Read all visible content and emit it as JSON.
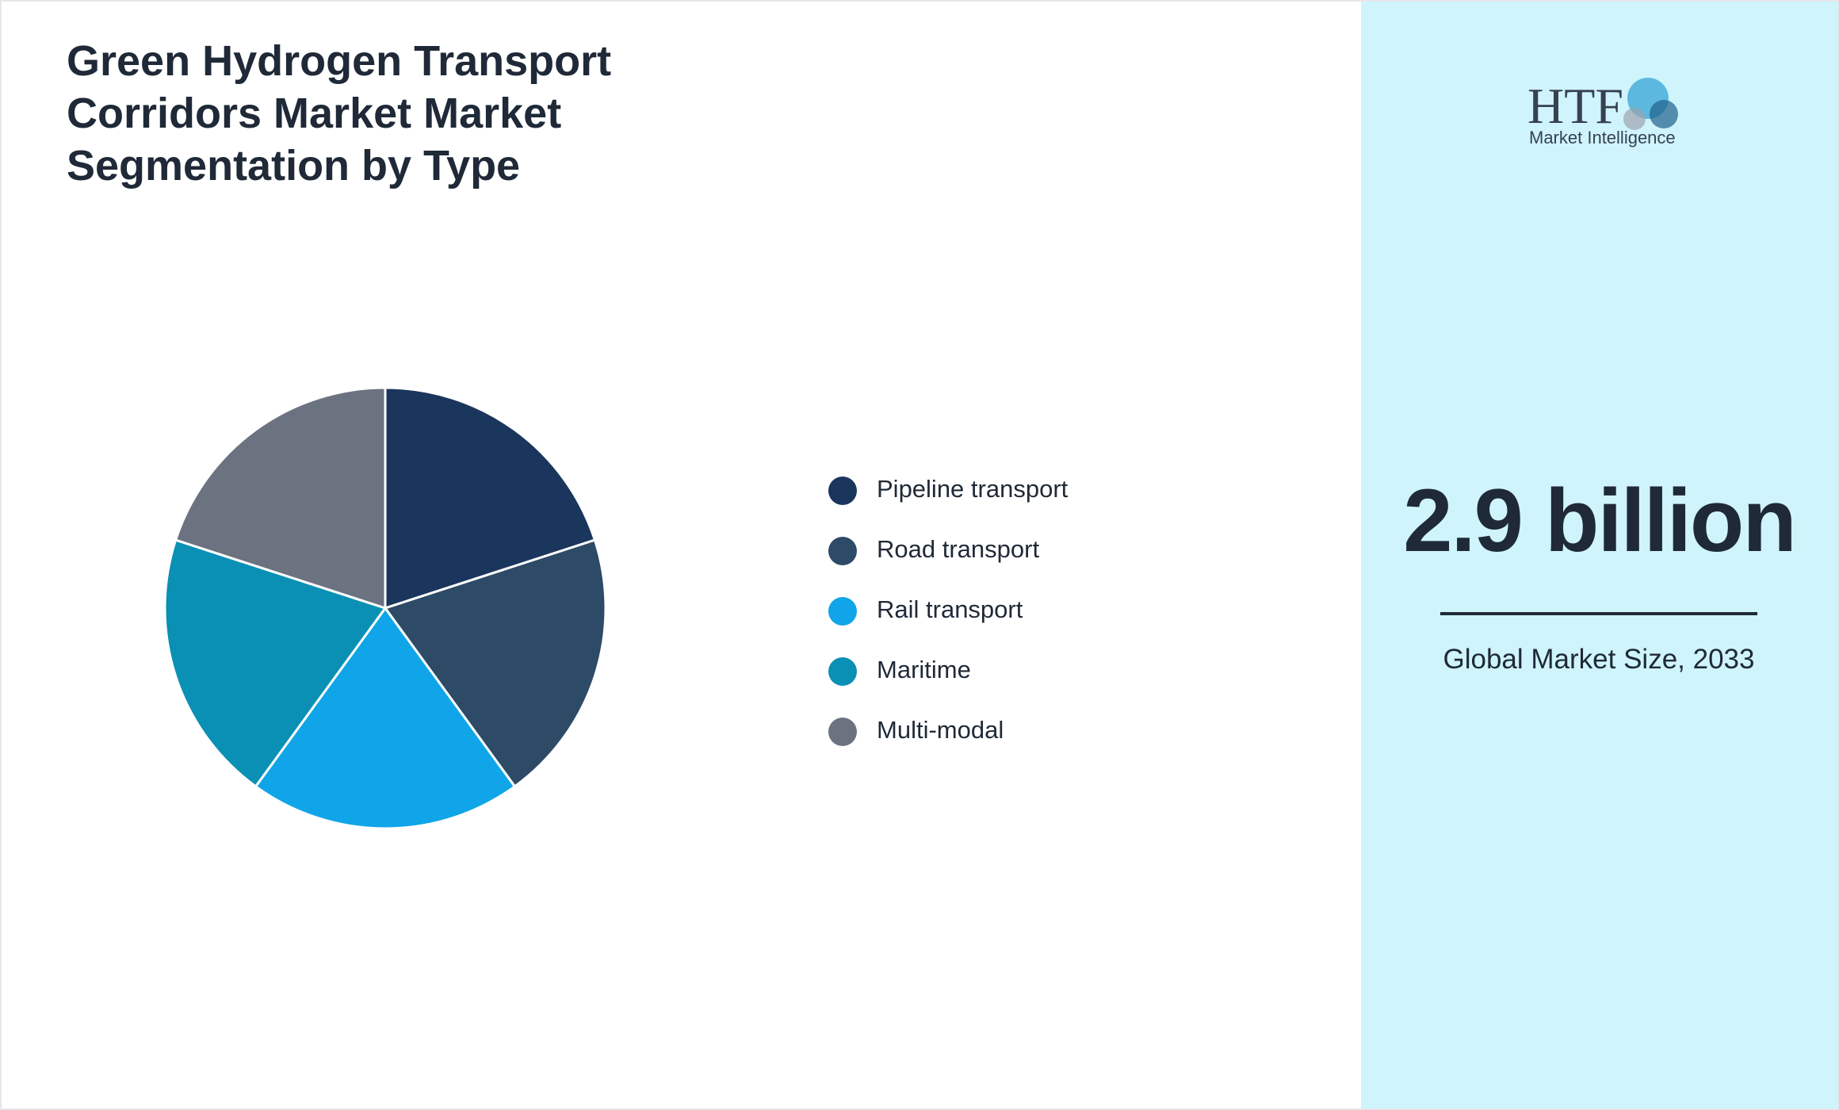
{
  "chart_data": {
    "type": "pie",
    "title": "Green Hydrogen Transport Corridors Market Market Segmentation by Type",
    "categories": [
      "Pipeline transport",
      "Road transport",
      "Rail transport",
      "Maritime",
      "Multi-modal"
    ],
    "values": [
      20,
      20,
      20,
      20,
      20
    ],
    "colors": [
      "#1b365d",
      "#2d4a66",
      "#10a5e8",
      "#0a90b4",
      "#6b7280"
    ]
  },
  "market_size": {
    "value": 2.9,
    "unit": "billion",
    "label": "Global Market Size, 2033"
  },
  "logo": {
    "name": "HTF",
    "tagline": "Market Intelligence"
  }
}
